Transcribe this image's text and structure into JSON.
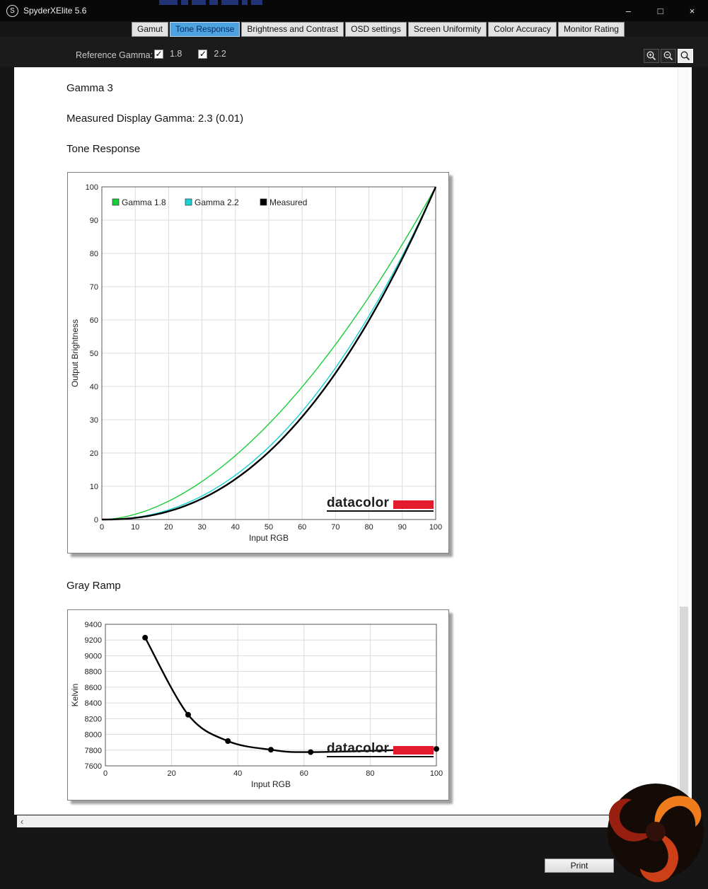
{
  "window": {
    "title": "SpyderXElite 5.6",
    "icon_letter": "S",
    "controls": {
      "minimize": "–",
      "maximize": "□",
      "close": "×"
    }
  },
  "tabs": [
    {
      "label": "Gamut",
      "active": false
    },
    {
      "label": "Tone Response",
      "active": true
    },
    {
      "label": "Brightness and Contrast",
      "active": false
    },
    {
      "label": "OSD settings",
      "active": false
    },
    {
      "label": "Screen Uniformity",
      "active": false
    },
    {
      "label": "Color Accuracy",
      "active": false
    },
    {
      "label": "Monitor Rating",
      "active": false
    }
  ],
  "toolbar": {
    "reference_gamma_label": "Reference Gamma:",
    "checkboxes": [
      {
        "label": "1.8",
        "checked": true
      },
      {
        "label": "2.2",
        "checked": true
      }
    ]
  },
  "page": {
    "heading": "Gamma 3",
    "measured_line": "Measured Display Gamma: 2.3 (0.01)",
    "tone_response_title": "Tone Response",
    "gray_ramp_title": "Gray Ramp",
    "watermark": "datacolor"
  },
  "scrollbar": {
    "left_arrow": "‹",
    "right_arrow": "›"
  },
  "footer": {
    "print_label": "Print"
  },
  "colors": {
    "tab_active_bg": "#4da3e0",
    "datacolor_red": "#e31c2d"
  },
  "chart_data": [
    {
      "type": "line",
      "title": "Tone Response",
      "xlabel": "Input RGB",
      "ylabel": "Output Brightness",
      "xlim": [
        0,
        100
      ],
      "ylim": [
        0,
        100
      ],
      "x_ticks": [
        0,
        10,
        20,
        30,
        40,
        50,
        60,
        70,
        80,
        90,
        100
      ],
      "y_ticks": [
        0,
        10,
        20,
        30,
        40,
        50,
        60,
        70,
        80,
        90,
        100
      ],
      "grid": true,
      "legend_position": "top-left",
      "series": [
        {
          "name": "Gamma 1.8",
          "color": "#17cd3a",
          "gamma": 1.8,
          "x": [
            0,
            10,
            20,
            30,
            40,
            50,
            60,
            70,
            80,
            90,
            100
          ],
          "values": [
            0,
            1.6,
            5.5,
            11.4,
            19.2,
            28.7,
            39.9,
            52.6,
            66.9,
            82.7,
            100
          ]
        },
        {
          "name": "Gamma 2.2",
          "color": "#16d2d2",
          "gamma": 2.2,
          "x": [
            0,
            10,
            20,
            30,
            40,
            50,
            60,
            70,
            80,
            90,
            100
          ],
          "values": [
            0,
            0.6,
            2.9,
            7.1,
            13.3,
            21.8,
            32.5,
            45.6,
            61.1,
            79.3,
            100
          ]
        },
        {
          "name": "Measured",
          "color": "#000000",
          "gamma": 2.3,
          "x": [
            0,
            10,
            20,
            30,
            40,
            50,
            60,
            70,
            80,
            90,
            100
          ],
          "values": [
            0,
            0.5,
            2.5,
            6.3,
            12.2,
            20.3,
            30.9,
            44,
            59.8,
            78.5,
            100
          ]
        }
      ]
    },
    {
      "type": "line",
      "title": "Gray Ramp",
      "xlabel": "Input RGB",
      "ylabel": "Kelvin",
      "xlim": [
        0,
        100
      ],
      "ylim": [
        7600,
        9400
      ],
      "x_ticks": [
        0,
        20,
        40,
        60,
        80,
        100
      ],
      "y_ticks": [
        7600,
        7800,
        8000,
        8200,
        8400,
        8600,
        8800,
        9000,
        9200,
        9400
      ],
      "grid": true,
      "points": [
        [
          12,
          9230
        ],
        [
          25,
          8250
        ],
        [
          37,
          7915
        ],
        [
          50,
          7805
        ],
        [
          62,
          7775
        ],
        [
          100,
          7815
        ]
      ]
    }
  ]
}
